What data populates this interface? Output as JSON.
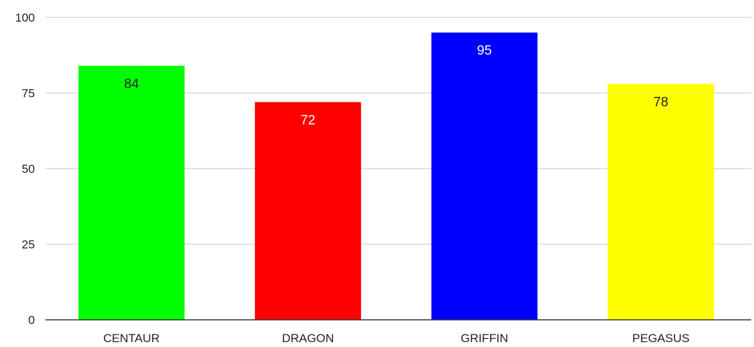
{
  "chart_data": {
    "type": "bar",
    "title": "",
    "xlabel": "",
    "ylabel": "",
    "categories": [
      "CENTAUR",
      "DRAGON",
      "GRIFFIN",
      "PEGASUS"
    ],
    "values": [
      84,
      72,
      95,
      78
    ],
    "value_labels": [
      "84",
      "72",
      "95",
      "78"
    ],
    "bar_colors": [
      "#00ff00",
      "#ff0000",
      "#0000ff",
      "#ffff00"
    ],
    "label_colors": [
      "#222222",
      "#ffffff",
      "#ffffff",
      "#222222"
    ],
    "ylim": [
      0,
      100
    ],
    "yticks": [
      0,
      25,
      50,
      75,
      100
    ],
    "ytick_labels": [
      "0",
      "25",
      "50",
      "75",
      "100"
    ],
    "grid": true,
    "legend": "none",
    "colors": {
      "grid": "#d9d9d9",
      "axis": "#333333",
      "text": "#222222"
    }
  }
}
